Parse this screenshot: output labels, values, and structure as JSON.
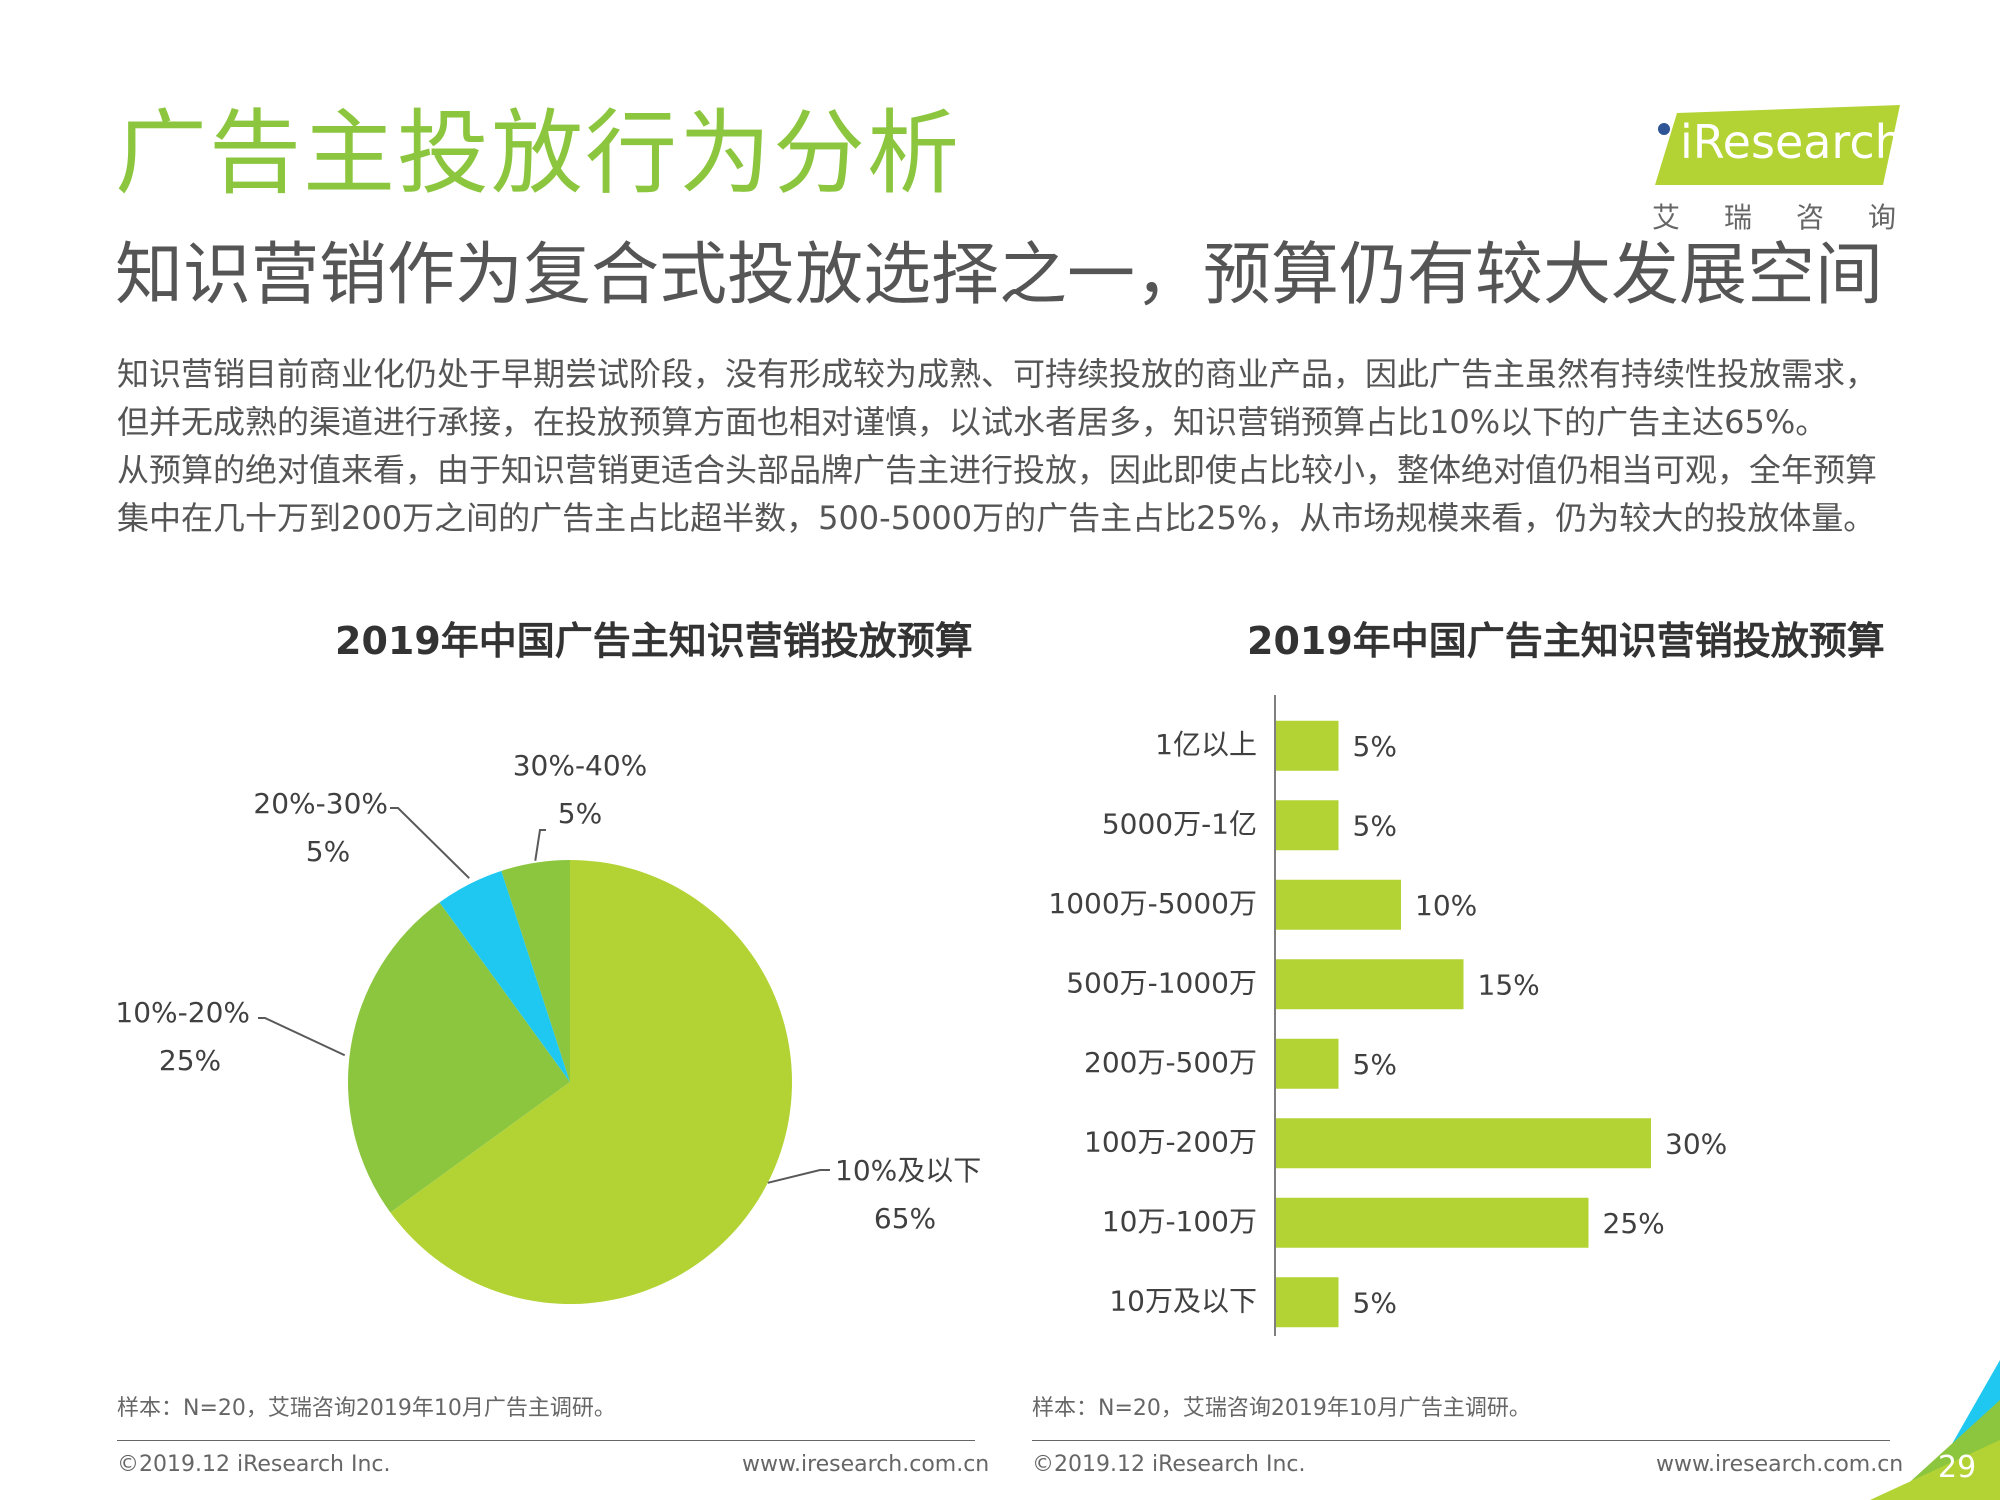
{
  "header": {
    "title": "广告主投放行为分析",
    "subtitle": "知识营销作为复合式投放选择之一，预算仍有较大发展空间"
  },
  "logo": {
    "text": "iResearch",
    "sub": "艾瑞咨询"
  },
  "body": {
    "paragraph1": "知识营销目前商业化仍处于早期尝试阶段，没有形成较为成熟、可持续投放的商业产品，因此广告主虽然有持续性投放需求，但并无成熟的渠道进行承接，在投放预算方面也相对谨慎，以试水者居多，知识营销预算占比10%以下的广告主达65%。",
    "paragraph2": "从预算的绝对值来看，由于知识营销更适合头部品牌广告主进行投放，因此即使占比较小，整体绝对值仍相当可观，全年预算集中在几十万到200万之间的广告主占比超半数，500-5000万的广告主占比25%，从市场规模来看，仍为较大的投放体量。"
  },
  "chart_data": [
    {
      "type": "pie",
      "title": "2019年中国广告主知识营销投放预算",
      "slices": [
        {
          "label": "10%及以下",
          "value": 65,
          "display": "65%",
          "color": "#b3d335"
        },
        {
          "label": "10%-20%",
          "value": 25,
          "display": "25%",
          "color": "#8cc63f"
        },
        {
          "label": "20%-30%",
          "value": 5,
          "display": "5%",
          "color": "#1ec8f0"
        },
        {
          "label": "30%-40%",
          "value": 5,
          "display": "5%",
          "color": "#8cc63f"
        }
      ]
    },
    {
      "type": "bar",
      "orientation": "horizontal",
      "title": "2019年中国广告主知识营销投放预算",
      "categories": [
        "1亿以上",
        "5000万-1亿",
        "1000万-5000万",
        "500万-1000万",
        "200万-500万",
        "100万-200万",
        "10万-100万",
        "10万及以下"
      ],
      "values": [
        5,
        5,
        10,
        15,
        5,
        30,
        25,
        5
      ],
      "value_labels": [
        "5%",
        "5%",
        "10%",
        "15%",
        "5%",
        "30%",
        "25%",
        "5%"
      ],
      "xlim": [
        0,
        30
      ],
      "color": "#b3d335"
    }
  ],
  "footer": {
    "note_left": "样本：N=20，艾瑞咨询2019年10月广告主调研。",
    "note_right": "样本：N=20，艾瑞咨询2019年10月广告主调研。",
    "copyright_left": "©2019.12 iResearch Inc.",
    "url_left": "www.iresearch.com.cn",
    "copyright_right": "©2019.12 iResearch Inc.",
    "url_right": "www.iresearch.com.cn",
    "page_number": "29"
  }
}
